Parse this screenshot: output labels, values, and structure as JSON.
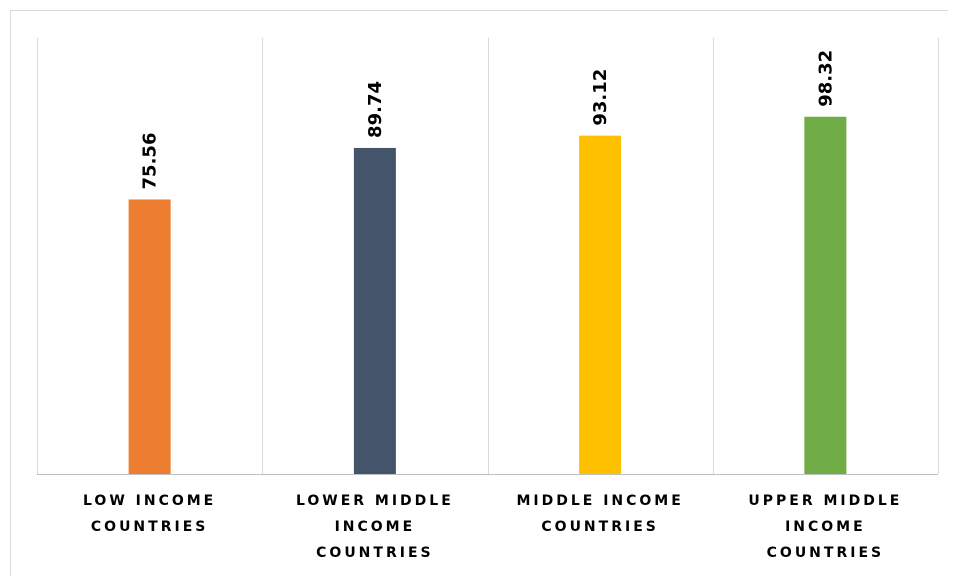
{
  "chart_data": {
    "type": "bar",
    "categories": [
      [
        "LOW INCOME",
        "COUNTRIES"
      ],
      [
        "LOWER MIDDLE",
        "INCOME",
        "COUNTRIES"
      ],
      [
        "MIDDLE INCOME",
        "COUNTRIES"
      ],
      [
        "UPPER MIDDLE",
        "INCOME",
        "COUNTRIES"
      ]
    ],
    "values": [
      75.56,
      89.74,
      93.12,
      98.32
    ],
    "value_labels": [
      "75.56",
      "89.74",
      "93.12",
      "98.32"
    ],
    "colors": [
      "#ED7D31",
      "#44546A",
      "#FFC000",
      "#70AD47"
    ],
    "title": "",
    "xlabel": "",
    "ylabel": "",
    "ylim": [
      0,
      120
    ],
    "grid": "vertical-category-separators",
    "legend": "none"
  },
  "style": {
    "gridline_color": "#d9d9d9",
    "axis_color": "#bfbfbf"
  }
}
